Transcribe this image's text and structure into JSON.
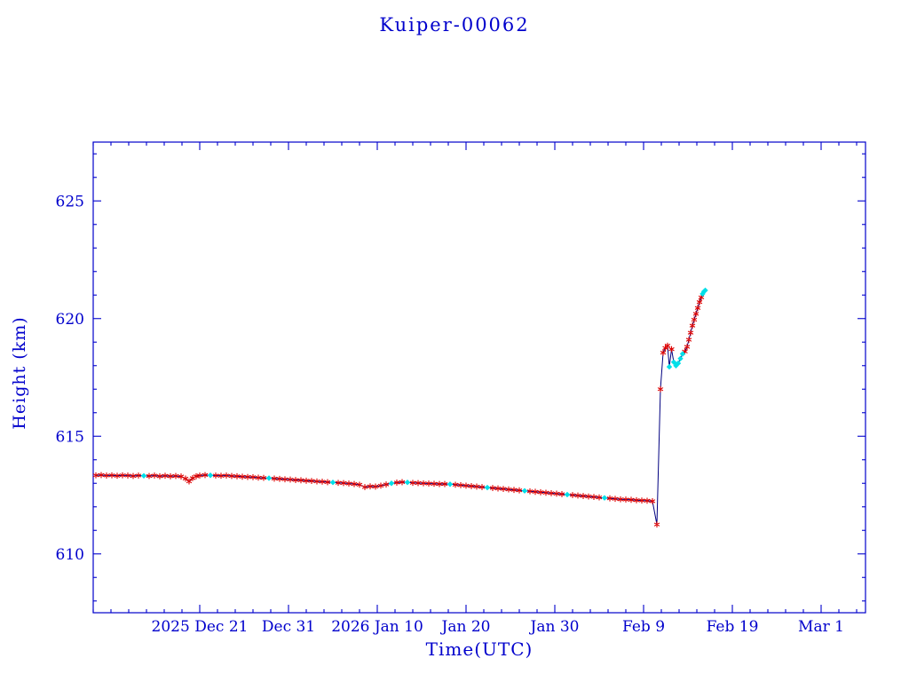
{
  "chart_data": {
    "type": "line",
    "title": "Kuiper-00062",
    "xlabel": "Time(UTC)",
    "ylabel": "Height (km)",
    "x_unit": "days from plot left edge (2025 Dec 9)",
    "xlim": [
      0,
      87
    ],
    "ylim": [
      607.5,
      627.5
    ],
    "x_ticks": [
      {
        "pos": 12,
        "label": "2025 Dec 21"
      },
      {
        "pos": 22,
        "label": "Dec 31"
      },
      {
        "pos": 32,
        "label": "2026 Jan 10"
      },
      {
        "pos": 42,
        "label": "Jan 20"
      },
      {
        "pos": 52,
        "label": "Jan 30"
      },
      {
        "pos": 62,
        "label": "Feb 9"
      },
      {
        "pos": 72,
        "label": "Feb 19"
      },
      {
        "pos": 82,
        "label": "Mar 1"
      }
    ],
    "x_minor_step": 2,
    "y_ticks": [
      610,
      615,
      620,
      625
    ],
    "y_minor_step": 1,
    "grid": false,
    "legend": null,
    "colors": {
      "axis": "#0000cc",
      "line": "#000080",
      "marker_primary": "#dd0000",
      "marker_secondary": "#00dfe8"
    },
    "marker_legend": {
      "r": "red-asterisk",
      "c": "cyan-diamond"
    },
    "points": [
      [
        0.3,
        613.34,
        "r"
      ],
      [
        0.9,
        613.35,
        "r"
      ],
      [
        1.5,
        613.33,
        "r"
      ],
      [
        2.1,
        613.34,
        "r"
      ],
      [
        2.7,
        613.32,
        "r"
      ],
      [
        3.3,
        613.34,
        "r"
      ],
      [
        3.9,
        613.33,
        "r"
      ],
      [
        4.5,
        613.31,
        "r"
      ],
      [
        5.1,
        613.33,
        "r"
      ],
      [
        5.7,
        613.32,
        "c"
      ],
      [
        6.3,
        613.31,
        "r"
      ],
      [
        6.9,
        613.33,
        "r"
      ],
      [
        7.5,
        613.3,
        "r"
      ],
      [
        8.1,
        613.32,
        "r"
      ],
      [
        8.7,
        613.3,
        "r"
      ],
      [
        9.3,
        613.31,
        "r"
      ],
      [
        9.9,
        613.29,
        "r"
      ],
      [
        10.4,
        613.2,
        "r"
      ],
      [
        10.8,
        613.08,
        "r"
      ],
      [
        11.2,
        613.22,
        "r"
      ],
      [
        11.6,
        613.3,
        "r"
      ],
      [
        12.0,
        613.33,
        "r"
      ],
      [
        12.6,
        613.35,
        "r"
      ],
      [
        13.2,
        613.34,
        "c"
      ],
      [
        13.8,
        613.33,
        "r"
      ],
      [
        14.4,
        613.32,
        "r"
      ],
      [
        15.0,
        613.33,
        "r"
      ],
      [
        15.6,
        613.31,
        "r"
      ],
      [
        16.2,
        613.3,
        "r"
      ],
      [
        16.8,
        613.28,
        "r"
      ],
      [
        17.4,
        613.27,
        "r"
      ],
      [
        18.0,
        613.26,
        "r"
      ],
      [
        18.6,
        613.24,
        "r"
      ],
      [
        19.2,
        613.23,
        "r"
      ],
      [
        19.8,
        613.22,
        "c"
      ],
      [
        20.4,
        613.2,
        "r"
      ],
      [
        21.0,
        613.19,
        "r"
      ],
      [
        21.6,
        613.17,
        "r"
      ],
      [
        22.2,
        613.16,
        "r"
      ],
      [
        22.8,
        613.14,
        "r"
      ],
      [
        23.4,
        613.13,
        "r"
      ],
      [
        24.0,
        613.11,
        "r"
      ],
      [
        24.6,
        613.1,
        "r"
      ],
      [
        25.2,
        613.08,
        "r"
      ],
      [
        25.8,
        613.07,
        "r"
      ],
      [
        26.4,
        613.05,
        "r"
      ],
      [
        27.0,
        613.04,
        "c"
      ],
      [
        27.6,
        613.02,
        "r"
      ],
      [
        28.2,
        613.01,
        "r"
      ],
      [
        28.8,
        612.99,
        "r"
      ],
      [
        29.4,
        612.97,
        "r"
      ],
      [
        30.0,
        612.94,
        "r"
      ],
      [
        30.6,
        612.84,
        "r"
      ],
      [
        31.2,
        612.87,
        "r"
      ],
      [
        31.8,
        612.86,
        "r"
      ],
      [
        32.4,
        612.9,
        "r"
      ],
      [
        33.0,
        612.95,
        "r"
      ],
      [
        33.6,
        613.0,
        "c"
      ],
      [
        34.2,
        613.03,
        "r"
      ],
      [
        34.8,
        613.05,
        "r"
      ],
      [
        35.4,
        613.04,
        "c"
      ],
      [
        36.0,
        613.02,
        "r"
      ],
      [
        36.6,
        613.01,
        "r"
      ],
      [
        37.2,
        613.0,
        "r"
      ],
      [
        37.8,
        612.99,
        "r"
      ],
      [
        38.4,
        612.98,
        "r"
      ],
      [
        39.0,
        612.97,
        "r"
      ],
      [
        39.6,
        612.97,
        "r"
      ],
      [
        40.2,
        612.96,
        "c"
      ],
      [
        40.8,
        612.94,
        "r"
      ],
      [
        41.4,
        612.92,
        "r"
      ],
      [
        42.0,
        612.9,
        "r"
      ],
      [
        42.6,
        612.88,
        "r"
      ],
      [
        43.2,
        612.86,
        "r"
      ],
      [
        43.8,
        612.84,
        "r"
      ],
      [
        44.4,
        612.82,
        "c"
      ],
      [
        45.0,
        612.8,
        "r"
      ],
      [
        45.6,
        612.78,
        "r"
      ],
      [
        46.2,
        612.76,
        "r"
      ],
      [
        46.8,
        612.74,
        "r"
      ],
      [
        47.4,
        612.72,
        "r"
      ],
      [
        48.0,
        612.7,
        "r"
      ],
      [
        48.6,
        612.68,
        "c"
      ],
      [
        49.2,
        612.66,
        "r"
      ],
      [
        49.8,
        612.64,
        "r"
      ],
      [
        50.4,
        612.62,
        "r"
      ],
      [
        51.0,
        612.6,
        "r"
      ],
      [
        51.6,
        612.58,
        "r"
      ],
      [
        52.2,
        612.56,
        "r"
      ],
      [
        52.8,
        612.54,
        "r"
      ],
      [
        53.4,
        612.52,
        "c"
      ],
      [
        54.0,
        612.5,
        "r"
      ],
      [
        54.6,
        612.48,
        "r"
      ],
      [
        55.2,
        612.46,
        "r"
      ],
      [
        55.8,
        612.44,
        "r"
      ],
      [
        56.4,
        612.42,
        "r"
      ],
      [
        57.0,
        612.4,
        "r"
      ],
      [
        57.6,
        612.38,
        "c"
      ],
      [
        58.2,
        612.36,
        "r"
      ],
      [
        58.8,
        612.34,
        "r"
      ],
      [
        59.4,
        612.32,
        "r"
      ],
      [
        60.0,
        612.31,
        "r"
      ],
      [
        60.6,
        612.3,
        "r"
      ],
      [
        61.2,
        612.28,
        "r"
      ],
      [
        61.8,
        612.27,
        "r"
      ],
      [
        62.4,
        612.26,
        "r"
      ],
      [
        63.0,
        612.24,
        "r"
      ],
      [
        63.5,
        611.25,
        "r"
      ],
      [
        63.9,
        617.0,
        "r"
      ],
      [
        64.2,
        618.55,
        "r"
      ],
      [
        64.45,
        618.75,
        "r"
      ],
      [
        64.7,
        618.85,
        "r"
      ],
      [
        64.9,
        617.95,
        "c"
      ],
      [
        65.15,
        618.7,
        "r"
      ],
      [
        65.4,
        618.15,
        "c"
      ],
      [
        65.65,
        618.0,
        "c"
      ],
      [
        65.9,
        618.1,
        "c"
      ],
      [
        66.15,
        618.3,
        "c"
      ],
      [
        66.4,
        618.5,
        "c"
      ],
      [
        66.65,
        618.6,
        "r"
      ],
      [
        66.9,
        618.8,
        "r"
      ],
      [
        67.1,
        619.1,
        "r"
      ],
      [
        67.3,
        619.4,
        "r"
      ],
      [
        67.5,
        619.7,
        "r"
      ],
      [
        67.7,
        619.95,
        "r"
      ],
      [
        67.9,
        620.2,
        "r"
      ],
      [
        68.1,
        620.45,
        "r"
      ],
      [
        68.3,
        620.7,
        "r"
      ],
      [
        68.5,
        620.9,
        "r"
      ],
      [
        68.65,
        621.05,
        "c"
      ],
      [
        68.8,
        621.15,
        "c"
      ],
      [
        68.95,
        621.2,
        "c"
      ]
    ]
  }
}
